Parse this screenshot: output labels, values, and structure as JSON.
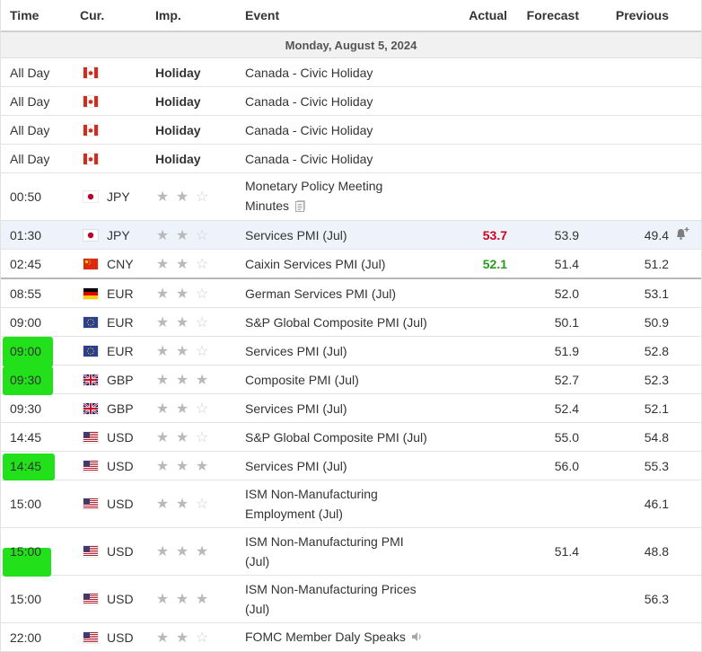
{
  "columns": {
    "time": "Time",
    "currency": "Cur.",
    "importance": "Imp.",
    "event": "Event",
    "actual": "Actual",
    "forecast": "Forecast",
    "previous": "Previous"
  },
  "date_header": "Monday, August 5, 2024",
  "holiday_label": "Holiday",
  "colors": {
    "accent_highlight": "#22e01a",
    "actual_red": "#d0021b",
    "actual_green": "#2a9b1c",
    "row_highlight": "#eef3fb"
  },
  "rows": [
    {
      "time": "All Day",
      "flag": "ca",
      "currency": "",
      "importance": "holiday",
      "event_line1": "Canada - Civic Holiday",
      "event_line2": "",
      "actual": "",
      "forecast": "",
      "previous": ""
    },
    {
      "time": "All Day",
      "flag": "ca",
      "currency": "",
      "importance": "holiday",
      "event_line1": "Canada - Civic Holiday",
      "event_line2": "",
      "actual": "",
      "forecast": "",
      "previous": ""
    },
    {
      "time": "All Day",
      "flag": "ca",
      "currency": "",
      "importance": "holiday",
      "event_line1": "Canada - Civic Holiday",
      "event_line2": "",
      "actual": "",
      "forecast": "",
      "previous": ""
    },
    {
      "time": "All Day",
      "flag": "ca",
      "currency": "",
      "importance": "holiday",
      "event_line1": "Canada - Civic Holiday",
      "event_line2": "",
      "actual": "",
      "forecast": "",
      "previous": ""
    },
    {
      "time": "00:50",
      "flag": "jp",
      "currency": "JPY",
      "importance": 2,
      "event_line1": "Monetary Policy Meeting",
      "event_line2": "Minutes",
      "actual": "",
      "forecast": "",
      "previous": ""
    },
    {
      "time": "01:30",
      "flag": "jp",
      "currency": "JPY",
      "importance": 2,
      "event_line1": "Services PMI (Jul)",
      "event_line2": "",
      "actual": "53.7",
      "forecast": "53.9",
      "previous": "49.4"
    },
    {
      "time": "02:45",
      "flag": "cn",
      "currency": "CNY",
      "importance": 2,
      "event_line1": "Caixin Services PMI (Jul)",
      "event_line2": "",
      "actual": "52.1",
      "forecast": "51.4",
      "previous": "51.2"
    },
    {
      "time": "08:55",
      "flag": "de",
      "currency": "EUR",
      "importance": 2,
      "event_line1": "German Services PMI (Jul)",
      "event_line2": "",
      "actual": "",
      "forecast": "52.0",
      "previous": "53.1"
    },
    {
      "time": "09:00",
      "flag": "eu",
      "currency": "EUR",
      "importance": 2,
      "event_line1": "S&P Global Composite PMI (Jul)",
      "event_line2": "",
      "actual": "",
      "forecast": "50.1",
      "previous": "50.9"
    },
    {
      "time": "09:00",
      "flag": "eu",
      "currency": "EUR",
      "importance": 2,
      "event_line1": "Services PMI (Jul)",
      "event_line2": "",
      "actual": "",
      "forecast": "51.9",
      "previous": "52.8"
    },
    {
      "time": "09:30",
      "flag": "gb",
      "currency": "GBP",
      "importance": 3,
      "event_line1": "Composite PMI (Jul)",
      "event_line2": "",
      "actual": "",
      "forecast": "52.7",
      "previous": "52.3"
    },
    {
      "time": "09:30",
      "flag": "gb",
      "currency": "GBP",
      "importance": 2,
      "event_line1": "Services PMI (Jul)",
      "event_line2": "",
      "actual": "",
      "forecast": "52.4",
      "previous": "52.1"
    },
    {
      "time": "14:45",
      "flag": "us",
      "currency": "USD",
      "importance": 2,
      "event_line1": "S&P Global Composite PMI (Jul)",
      "event_line2": "",
      "actual": "",
      "forecast": "55.0",
      "previous": "54.8"
    },
    {
      "time": "14:45",
      "flag": "us",
      "currency": "USD",
      "importance": 3,
      "event_line1": "Services PMI (Jul)",
      "event_line2": "",
      "actual": "",
      "forecast": "56.0",
      "previous": "55.3"
    },
    {
      "time": "15:00",
      "flag": "us",
      "currency": "USD",
      "importance": 2,
      "event_line1": "ISM Non-Manufacturing",
      "event_line2": "Employment (Jul)",
      "actual": "",
      "forecast": "",
      "previous": "46.1"
    },
    {
      "time": "15:00",
      "flag": "us",
      "currency": "USD",
      "importance": 3,
      "event_line1": "ISM Non-Manufacturing PMI",
      "event_line2": "(Jul)",
      "actual": "",
      "forecast": "51.4",
      "previous": "48.8"
    },
    {
      "time": "15:00",
      "flag": "us",
      "currency": "USD",
      "importance": 3,
      "event_line1": "ISM Non-Manufacturing Prices",
      "event_line2": "(Jul)",
      "actual": "",
      "forecast": "",
      "previous": "56.3"
    },
    {
      "time": "22:00",
      "flag": "us",
      "currency": "USD",
      "importance": 2,
      "event_line1": "FOMC Member Daly Speaks",
      "event_line2": "",
      "actual": "",
      "forecast": "",
      "previous": ""
    }
  ]
}
